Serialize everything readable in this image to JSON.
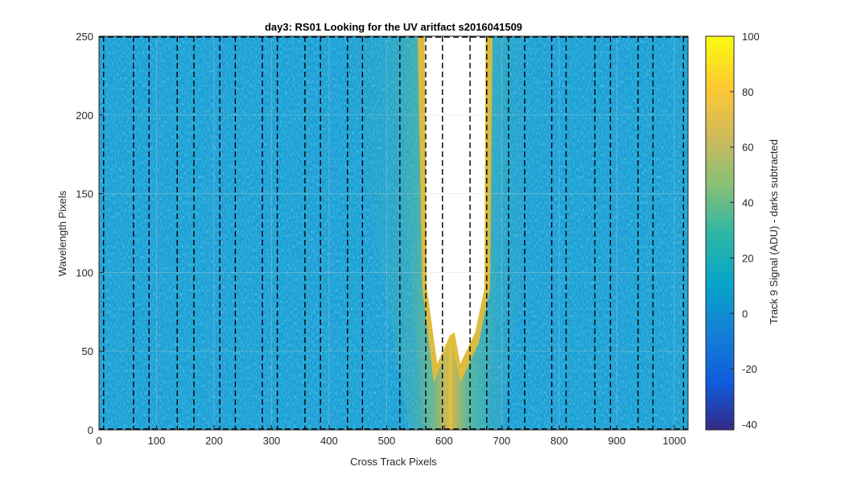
{
  "chart_data": {
    "type": "heatmap",
    "title": "day3: RS01  Looking for the UV aritfact  s2016041509",
    "xlabel": "Cross Track Pixels",
    "ylabel": "Wavelength Pixels",
    "colorbar_label": "Track 9 Signal (ADU) - darks subtracted",
    "colormap": "parula",
    "xlim": [
      0,
      1024
    ],
    "ylim": [
      0,
      250
    ],
    "clim": [
      -42,
      100
    ],
    "x_ticks": [
      "0",
      "100",
      "200",
      "300",
      "400",
      "500",
      "600",
      "700",
      "800",
      "900",
      "1000"
    ],
    "y_ticks": [
      "0",
      "50",
      "100",
      "150",
      "200",
      "250"
    ],
    "colorbar_ticks": [
      "-40",
      "-20",
      "0",
      "20",
      "40",
      "60",
      "80",
      "100"
    ],
    "grid": "on",
    "background_level": 0,
    "artifact": {
      "saturated_region_x": [
        566,
        672
      ],
      "saturated_region_min_wavelength": 40,
      "description_values": {
        "peak_center_x": 620,
        "halo_halfwidth_x": 90
      }
    },
    "dashed_lines_x": [
      8,
      60,
      87,
      136,
      165,
      210,
      237,
      284,
      310,
      358,
      385,
      432,
      458,
      523,
      568,
      597,
      645,
      674,
      712,
      740,
      787,
      812,
      862,
      889,
      937,
      963,
      1016
    ]
  }
}
